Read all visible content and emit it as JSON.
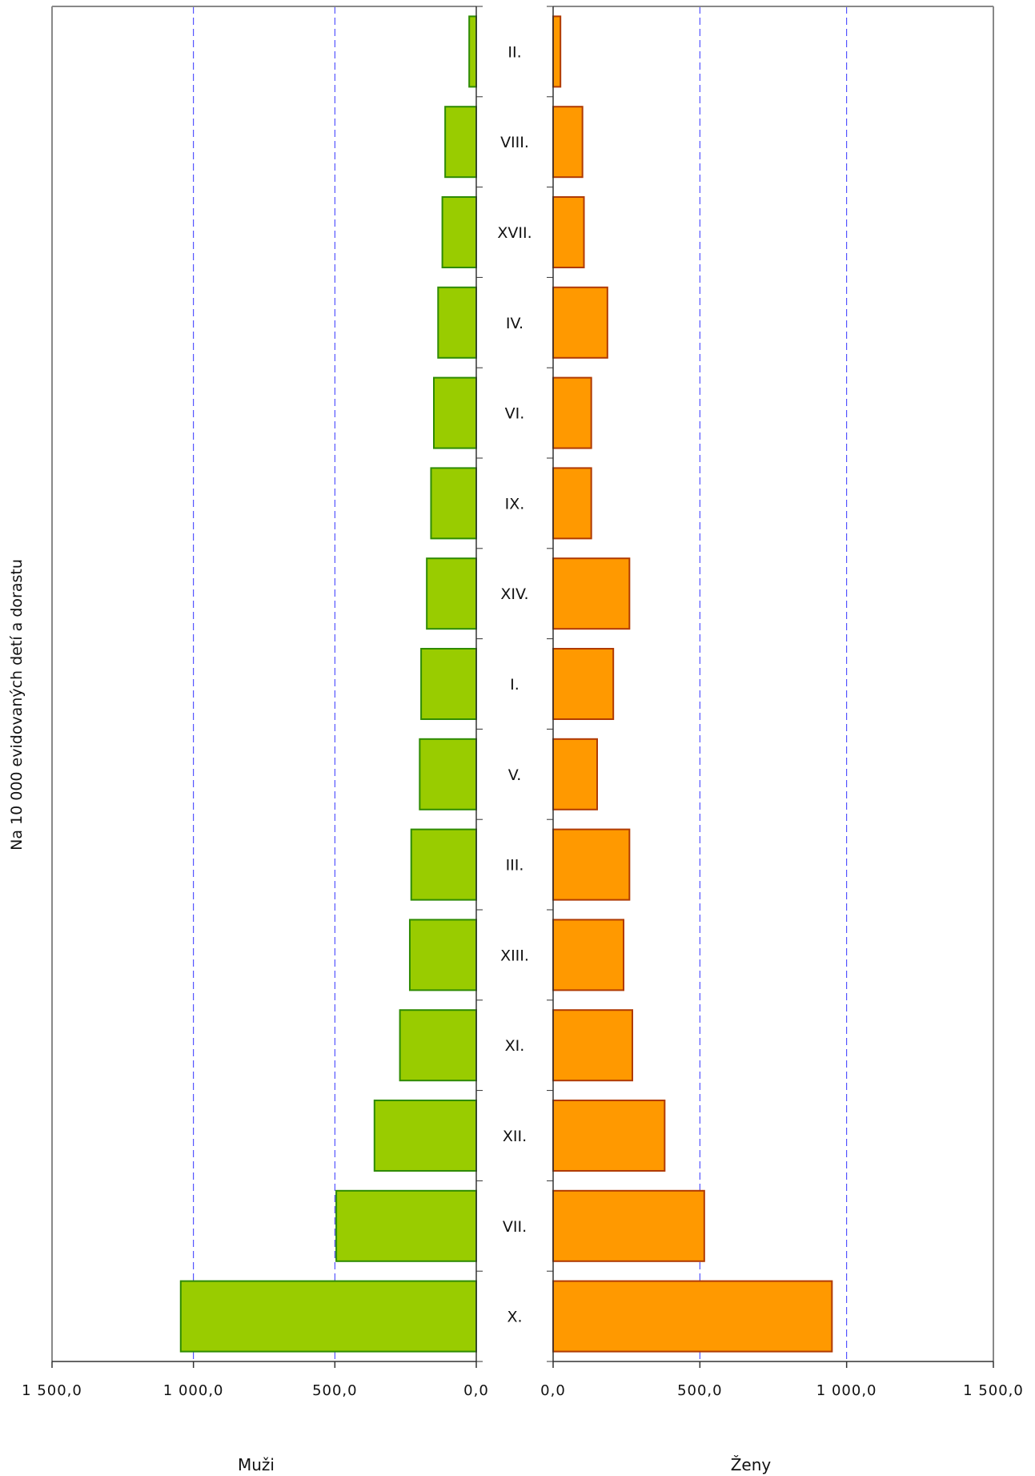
{
  "chart_data": {
    "type": "bar",
    "orientation": "horizontal-butterfly",
    "ylabel": "Na 10 000 evidovaných detí a dorastu",
    "categories": [
      "II.",
      "VIII.",
      "XVII.",
      "IV.",
      "VI.",
      "IX.",
      "XIV.",
      "I.",
      "V.",
      "III.",
      "XIII.",
      "XI.",
      "XII.",
      "VII.",
      "X."
    ],
    "series": [
      {
        "name": "Muži",
        "color": "#99cc00",
        "edge_color": "#2e8b00",
        "values": [
          25,
          110,
          120,
          135,
          150,
          160,
          175,
          195,
          200,
          230,
          235,
          270,
          360,
          495,
          1045
        ]
      },
      {
        "name": "Ženy",
        "color": "#ff9900",
        "edge_color": "#b03a00",
        "values": [
          25,
          100,
          105,
          185,
          130,
          130,
          260,
          205,
          150,
          260,
          240,
          270,
          380,
          515,
          950
        ]
      }
    ],
    "xlim": [
      0,
      1500
    ],
    "xticks": [
      "1 500,0",
      "1 000,0",
      "500,0",
      "0,0"
    ],
    "xticks_right": [
      "0,0",
      "500,0",
      "1 000,0",
      "1 500,0"
    ],
    "tick_values": [
      0,
      500,
      1000,
      1500
    ],
    "gridlines": [
      500,
      1000
    ],
    "grid": true,
    "grid_color": "#3333ff"
  }
}
